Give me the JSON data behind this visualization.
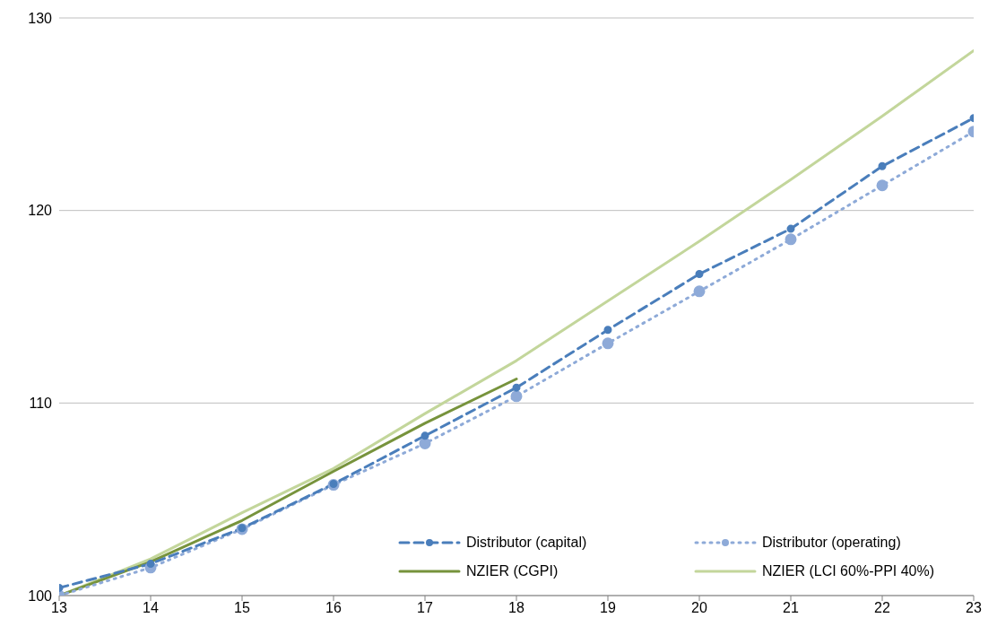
{
  "chart_data": {
    "type": "line",
    "x": [
      13,
      14,
      15,
      16,
      17,
      18,
      19,
      20,
      21,
      22,
      23
    ],
    "series": [
      {
        "name": "Distributor (capital)",
        "color": "#4a7ebb",
        "line_style": "dashed",
        "marker": "circle",
        "values": [
          100.4,
          101.65,
          103.5,
          105.8,
          108.3,
          110.8,
          113.8,
          116.7,
          119.05,
          122.3,
          124.8
        ]
      },
      {
        "name": "Distributor (operating)",
        "color": "#8eaad8",
        "line_style": "dotted",
        "marker": "circle",
        "values": [
          100.0,
          101.45,
          103.45,
          105.75,
          107.9,
          110.35,
          113.1,
          115.8,
          118.5,
          121.3,
          124.1
        ]
      },
      {
        "name": "NZIER (CGPI)",
        "color": "#77933c",
        "line_style": "solid",
        "marker": "none",
        "values": [
          100.0,
          101.75,
          103.9,
          106.45,
          108.95,
          111.25,
          null,
          null,
          null,
          null,
          null
        ]
      },
      {
        "name": "NZIER (LCI 60%-PPI 40%)",
        "color": "#c3d69b",
        "line_style": "solid",
        "marker": "none",
        "values": [
          100.0,
          101.9,
          104.3,
          106.6,
          109.45,
          112.2,
          115.3,
          118.4,
          121.6,
          124.9,
          128.3
        ]
      }
    ],
    "xlim": [
      13,
      23
    ],
    "xticks": [
      13,
      14,
      15,
      16,
      17,
      18,
      19,
      20,
      21,
      22,
      23
    ],
    "ylim": [
      100,
      130
    ],
    "yticks": [
      100,
      110,
      120,
      130
    ],
    "grid": "y",
    "legend": "bottom right"
  }
}
